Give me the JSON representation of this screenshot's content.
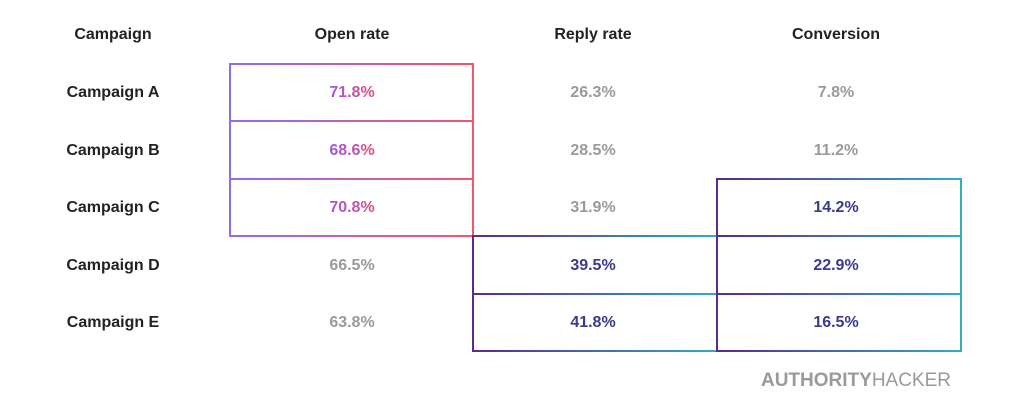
{
  "table": {
    "header": [
      "Campaign",
      "Open rate",
      "Reply rate",
      "Conversion"
    ],
    "rows": [
      [
        "Campaign A",
        "71.8%",
        "26.3%",
        "7.8%"
      ],
      [
        "Campaign B",
        "68.6%",
        "28.5%",
        "11.2%"
      ],
      [
        "Campaign C",
        "70.8%",
        "31.9%",
        "14.2%"
      ],
      [
        "Campaign D",
        "66.5%",
        "39.5%",
        "22.9%"
      ],
      [
        "Campaign E",
        "63.8%",
        "41.8%",
        "16.5%"
      ]
    ]
  },
  "brand": {
    "bold": "AUTHORITY",
    "regular": "HACKER"
  }
}
